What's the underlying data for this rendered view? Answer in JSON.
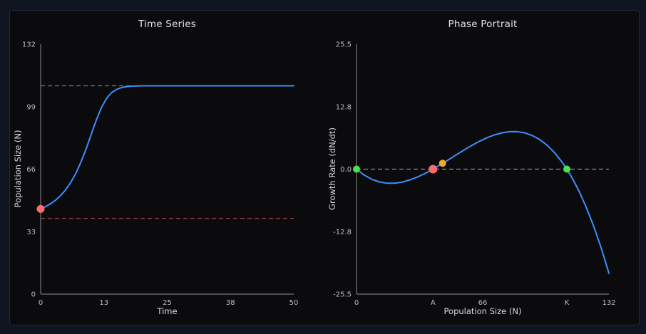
{
  "colors": {
    "background": "#0e1420",
    "panel_background": "#0b0b0e",
    "panel_border": "#202a40",
    "axis_spine": "#757575",
    "tick_label": "#bdbdbd",
    "title": "#e2e2e2",
    "axis_label": "#d9d9d9",
    "curve_blue": "#3f8efc",
    "marker_red": "#ff6b6b",
    "marker_green": "#4ae24a",
    "marker_orange": "#f2a72e",
    "dash_gray": "#7d7d7d",
    "dash_red": "#9e4040"
  },
  "chart_data": [
    {
      "type": "line",
      "title": "Time Series",
      "xlabel": "Time",
      "ylabel": "Population Size (N)",
      "xlim": [
        0,
        50
      ],
      "ylim": [
        0,
        132
      ],
      "grid": false,
      "legend": "none",
      "xticks": {
        "values": [
          0,
          12.5,
          25,
          37.5,
          50
        ],
        "labels": [
          "0",
          "13",
          "25",
          "38",
          "50"
        ]
      },
      "yticks": {
        "values": [
          0,
          33,
          66,
          99,
          132
        ],
        "labels": [
          "0",
          "33",
          "66",
          "99",
          "132"
        ]
      },
      "ref_lines": [
        {
          "name": "carrying-capacity-line",
          "y": 110,
          "color": "#7d7d7d",
          "dash": "6 4"
        },
        {
          "name": "allee-threshold-line",
          "y": 40,
          "color": "#9e4040",
          "dash": "6 4"
        }
      ],
      "series": [
        {
          "name": "population-trajectory",
          "color": "#3f8efc",
          "width": 2,
          "x": [
            0,
            1,
            2,
            3,
            4,
            5,
            6,
            7,
            8,
            9,
            10,
            11,
            12,
            13,
            14,
            15,
            16,
            17,
            18,
            19,
            20,
            21,
            22,
            23,
            24,
            25,
            26,
            27,
            28,
            29,
            30,
            31,
            32,
            33,
            34,
            35,
            36,
            37,
            38,
            39,
            40,
            41,
            42,
            43,
            44,
            45,
            46,
            47,
            48,
            49,
            50
          ],
          "y": [
            45.0,
            46.2,
            47.8,
            49.7,
            52.2,
            55.3,
            59.2,
            64.0,
            70.0,
            76.8,
            84.4,
            91.9,
            98.4,
            103.3,
            106.4,
            108.1,
            109.1,
            109.6,
            109.8,
            109.9,
            110.0,
            110.0,
            110.0,
            110.0,
            110.0,
            110.0,
            110.0,
            110.0,
            110.0,
            110.0,
            110.0,
            110.0,
            110.0,
            110.0,
            110.0,
            110.0,
            110.0,
            110.0,
            110.0,
            110.0,
            110.0,
            110.0,
            110.0,
            110.0,
            110.0,
            110.0,
            110.0,
            110.0,
            110.0,
            110.0,
            110.0
          ]
        }
      ],
      "markers": [
        {
          "name": "initial-population-point",
          "x": 0,
          "y": 45,
          "r": 5.5,
          "color": "#ff6b6b"
        }
      ]
    },
    {
      "type": "line",
      "title": "Phase Portrait",
      "xlabel": "Population Size (N)",
      "ylabel": "Growth Rate (dN/dt)",
      "xlim": [
        0,
        132
      ],
      "ylim": [
        -25.5,
        25.5
      ],
      "grid": false,
      "legend": "none",
      "xticks": {
        "values": [
          0,
          40,
          66,
          110,
          132
        ],
        "labels": [
          "0",
          "A",
          "66",
          "K",
          "132"
        ]
      },
      "yticks": {
        "values": [
          -25.5,
          -12.75,
          0,
          12.75,
          25.5
        ],
        "labels": [
          "-25.5",
          "-12.8",
          "0.0",
          "12.8",
          "25.5"
        ]
      },
      "ref_lines": [
        {
          "name": "zero-growth-line",
          "y": 0,
          "color": "#909090",
          "dash": "6 4"
        }
      ],
      "series": [
        {
          "name": "growth-rate-curve",
          "color": "#3f8efc",
          "width": 2,
          "x": [
            0,
            4,
            8,
            12,
            16,
            20,
            24,
            28,
            32,
            36,
            40,
            44,
            48,
            52,
            56,
            60,
            64,
            68,
            72,
            76,
            80,
            84,
            88,
            92,
            96,
            100,
            104,
            108,
            112,
            116,
            120,
            124,
            128,
            132
          ],
          "y": [
            0,
            -1.21,
            -2.08,
            -2.62,
            -2.87,
            -2.86,
            -2.63,
            -2.19,
            -1.59,
            -0.85,
            0,
            0.92,
            1.89,
            2.88,
            3.85,
            4.77,
            5.62,
            6.36,
            6.97,
            7.4,
            7.64,
            7.65,
            7.39,
            6.85,
            5.99,
            4.77,
            3.17,
            1.17,
            -1.28,
            -4.2,
            -7.64,
            -11.6,
            -16.12,
            -21.25
          ]
        }
      ],
      "markers": [
        {
          "name": "extinction-equilibrium-point",
          "x": 0,
          "y": 0,
          "r": 5,
          "color": "#4ae24a"
        },
        {
          "name": "allee-threshold-point",
          "x": 40,
          "y": 0,
          "r": 6,
          "color": "#ff6b6b"
        },
        {
          "name": "current-state-point",
          "x": 45,
          "y": 1.2,
          "r": 5,
          "color": "#f2a72e"
        },
        {
          "name": "carrying-capacity-point",
          "x": 110,
          "y": 0,
          "r": 5,
          "color": "#4ae24a"
        }
      ]
    }
  ]
}
